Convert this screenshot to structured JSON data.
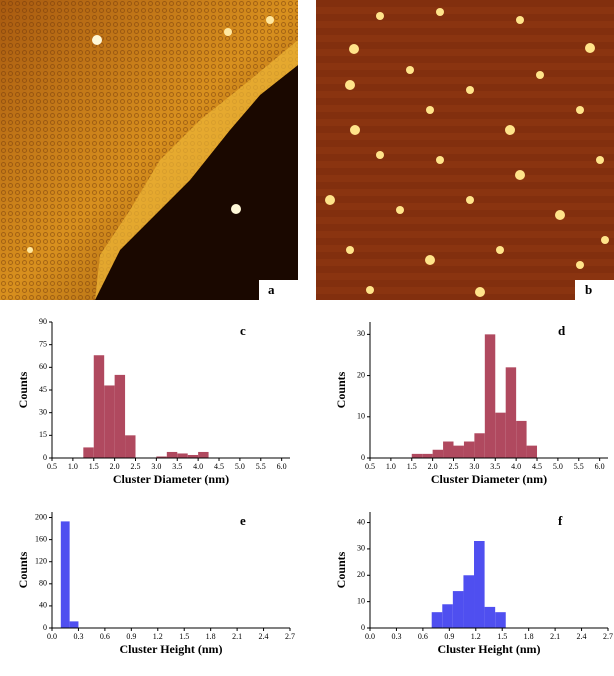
{
  "images": [
    {
      "label": "a"
    },
    {
      "label": "b"
    }
  ],
  "chart_data": [
    {
      "type": "histogram",
      "panel": "c",
      "xlabel": "Cluster Diameter (nm)",
      "ylabel": "Counts",
      "color": "#b0495f",
      "bins": [
        1.25,
        1.5,
        1.75,
        2.0,
        2.25,
        2.5,
        2.75,
        3.0,
        3.25,
        3.5,
        3.75,
        4.0,
        4.25
      ],
      "counts": [
        7,
        68,
        48,
        55,
        15,
        0,
        0,
        1,
        4,
        3,
        2,
        4
      ],
      "xlim": [
        0.5,
        6.2
      ],
      "ylim": [
        0,
        90
      ],
      "xticks": [
        0.5,
        {
          "value": 1,
          "label": "1.0"
        },
        1.5,
        {
          "value": 2,
          "label": "2.0"
        },
        2.5,
        {
          "value": 3,
          "label": "3.0"
        },
        3.5,
        {
          "value": 4,
          "label": "4.0"
        },
        4.5,
        {
          "value": 5,
          "label": "5.0"
        },
        5.5,
        {
          "value": 6,
          "label": "6.0"
        }
      ],
      "yticks": [
        0,
        15,
        30,
        45,
        60,
        75,
        90
      ]
    },
    {
      "type": "histogram",
      "panel": "d",
      "xlabel": "Cluster Diameter (nm)",
      "ylabel": "Counts",
      "color": "#b0495f",
      "bins": [
        1.5,
        1.75,
        2.0,
        2.25,
        2.5,
        2.75,
        3.0,
        3.25,
        3.5,
        3.75,
        4.0,
        4.25,
        4.5
      ],
      "counts": [
        1,
        1,
        2,
        4,
        3,
        4,
        6,
        30,
        11,
        22,
        9,
        3
      ],
      "xlim": [
        0.5,
        6.2
      ],
      "ylim": [
        0,
        33
      ],
      "xticks": [
        0.5,
        {
          "value": 1,
          "label": "1.0"
        },
        1.5,
        {
          "value": 2,
          "label": "2.0"
        },
        2.5,
        {
          "value": 3,
          "label": "3.0"
        },
        3.5,
        {
          "value": 4,
          "label": "4.0"
        },
        4.5,
        {
          "value": 5,
          "label": "5.0"
        },
        5.5,
        {
          "value": 6,
          "label": "6.0"
        }
      ],
      "yticks": [
        0,
        10,
        20,
        30
      ]
    },
    {
      "type": "histogram",
      "panel": "e",
      "xlabel": "Cluster Height (nm)",
      "ylabel": "Counts",
      "color": "#4f4ff0",
      "bins": [
        0.1,
        0.2,
        0.3
      ],
      "counts": [
        193,
        12
      ],
      "xlim": [
        0,
        2.7
      ],
      "ylim": [
        0,
        210
      ],
      "xticks": [
        {
          "value": 0,
          "label": "0.0"
        },
        0.3,
        0.6,
        0.9,
        1.2,
        1.5,
        1.8,
        2.1,
        2.4,
        2.7
      ],
      "yticks": [
        0,
        40,
        80,
        120,
        160,
        200
      ]
    },
    {
      "type": "histogram",
      "panel": "f",
      "xlabel": "Cluster Height (nm)",
      "ylabel": "Counts",
      "color": "#4f4ff0",
      "bins": [
        0.7,
        0.82,
        0.94,
        1.06,
        1.18,
        1.3,
        1.42,
        1.54
      ],
      "counts": [
        6,
        9,
        14,
        20,
        33,
        8,
        6
      ],
      "xlim": [
        0,
        2.7
      ],
      "ylim": [
        0,
        44
      ],
      "xticks": [
        {
          "value": 0,
          "label": "0.0"
        },
        0.3,
        0.6,
        0.9,
        1.2,
        1.5,
        1.8,
        2.1,
        2.4,
        2.7
      ],
      "yticks": [
        0,
        10,
        20,
        30,
        40
      ]
    }
  ]
}
